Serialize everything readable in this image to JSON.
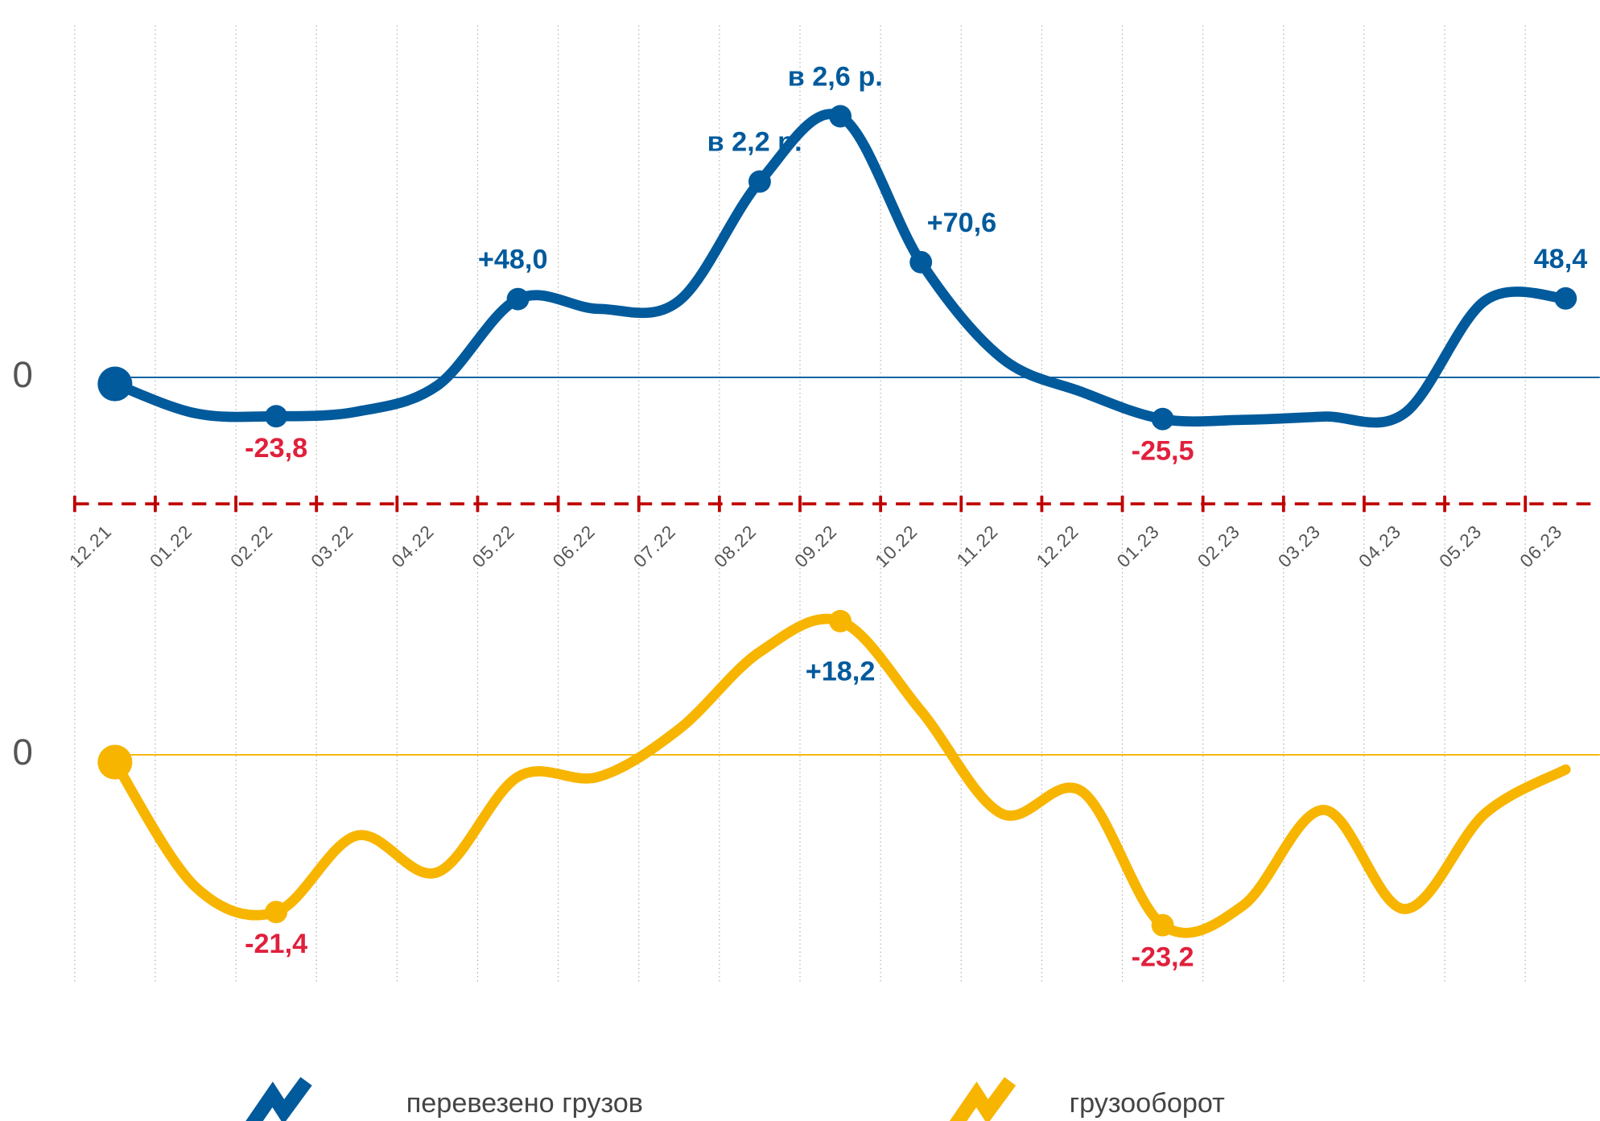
{
  "chart_data": {
    "type": "line",
    "categories": [
      "12.21",
      "01.22",
      "02.22",
      "03.22",
      "04.22",
      "05.22",
      "06.22",
      "07.22",
      "08.22",
      "09.22",
      "10.22",
      "11.22",
      "12.22",
      "01.23",
      "02.23",
      "03.23",
      "04.23",
      "05.23",
      "06.23"
    ],
    "series": [
      {
        "name": "перевезено грузов",
        "color": "#005a9c",
        "values": [
          -4,
          -22,
          -23.8,
          -21,
          -5,
          48.0,
          42,
          47,
          120,
          160,
          70.6,
          12,
          -9,
          -25.5,
          -26,
          -24,
          -22,
          47,
          48.4
        ],
        "value_labels": [
          null,
          null,
          "-23,8",
          null,
          null,
          "+48,0",
          null,
          null,
          "в 2,2 р.",
          "в 2,6 р.",
          "+70,6",
          null,
          null,
          "-25,5",
          null,
          null,
          null,
          null,
          "48,4"
        ]
      },
      {
        "name": "грузооборот",
        "color": "#f7b500",
        "axis": "y2",
        "values": [
          -1,
          -18,
          -21.4,
          -11,
          -16,
          -3,
          -3,
          3.5,
          14,
          18.2,
          6,
          -8,
          -5,
          -23.2,
          -20.5,
          -7.5,
          -21,
          -8,
          -2
        ],
        "value_labels": [
          null,
          null,
          "-21,4",
          null,
          null,
          null,
          null,
          null,
          null,
          "+18,2",
          null,
          null,
          null,
          "-23,2",
          null,
          null,
          null,
          null,
          null
        ]
      }
    ],
    "ylim": [
      -60,
      200
    ],
    "yticks": [
      0
    ],
    "y2lim": [
      -30,
      25
    ],
    "y2ticks": [
      0
    ]
  }
}
